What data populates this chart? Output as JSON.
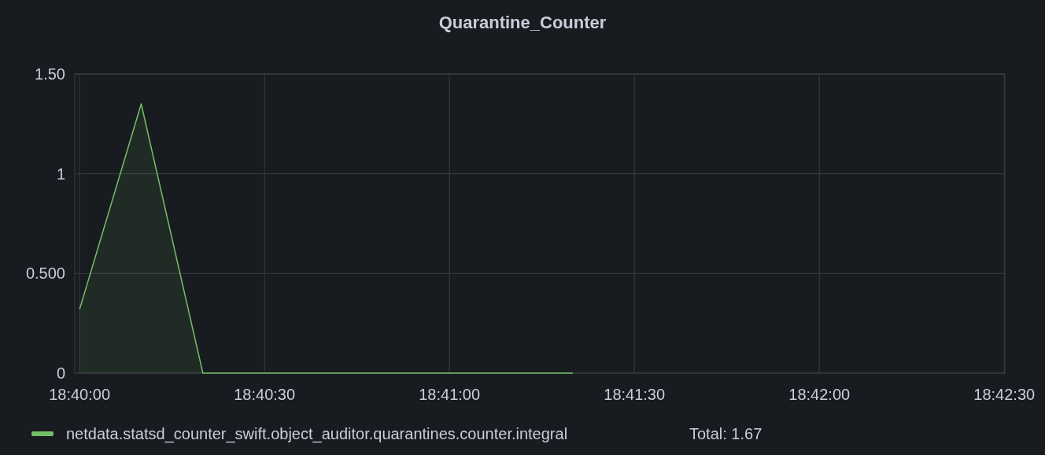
{
  "chart_data": {
    "type": "area",
    "title": "Quarantine_Counter",
    "x": [
      18.666667,
      18.669444,
      18.672222,
      18.675,
      18.677778,
      18.680556,
      18.683333,
      18.686111,
      18.688889
    ],
    "series": [
      {
        "name": "netdata.statsd_counter_swift.object_auditor.quarantines.counter.integral",
        "color": "#73bf69",
        "values": [
          0.32,
          1.35,
          0,
          0,
          0,
          0,
          0,
          0,
          0
        ]
      }
    ],
    "xlim": [
      18.66645,
      18.70836
    ],
    "xticks": [
      {
        "value": 18.666667,
        "label": "18:40:00"
      },
      {
        "value": 18.675,
        "label": "18:40:30"
      },
      {
        "value": 18.683333,
        "label": "18:41:00"
      },
      {
        "value": 18.691667,
        "label": "18:41:30"
      },
      {
        "value": 18.7,
        "label": "18:42:00"
      },
      {
        "value": 18.708333,
        "label": "18:42:30"
      }
    ],
    "ylim": [
      0,
      1.5
    ],
    "yticks": [
      {
        "value": 0,
        "label": "0"
      },
      {
        "value": 0.5,
        "label": "0.500"
      },
      {
        "value": 1,
        "label": "1"
      },
      {
        "value": 1.5,
        "label": "1.50"
      }
    ],
    "grid": true,
    "legend": "bottom",
    "annotations": [
      "Total: 1.67"
    ]
  }
}
